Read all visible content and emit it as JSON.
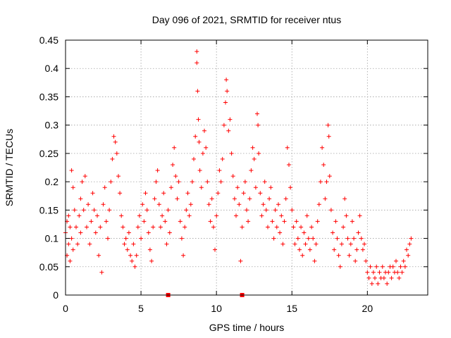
{
  "chart_data": {
    "type": "scatter",
    "title": "Day 096 of 2021, SRMTID for receiver ntus",
    "xlabel": "GPS time / hours",
    "ylabel": "SRMTID / TECUs",
    "xlim": [
      0,
      24
    ],
    "ylim": [
      0,
      0.45
    ],
    "xticks": [
      0,
      5,
      10,
      15,
      20
    ],
    "xtick_labels": [
      "0",
      "5",
      "10",
      "15",
      "20"
    ],
    "yticks": [
      0,
      0.05,
      0.1,
      0.15,
      0.2,
      0.25,
      0.3,
      0.35,
      0.4,
      0.45
    ],
    "ytick_labels": [
      "0",
      "0.05",
      "0.1",
      "0.15",
      "0.2",
      "0.25",
      "0.3",
      "0.35",
      "0.4",
      "0.45"
    ],
    "grid": true,
    "marker": "plus",
    "color": "#ff0000",
    "zero_markers_x": [
      6.8,
      11.7
    ],
    "series": [
      {
        "name": "SRMTID",
        "points": [
          [
            0.0,
            0.11
          ],
          [
            0.1,
            0.07
          ],
          [
            0.1,
            0.13
          ],
          [
            0.2,
            0.09
          ],
          [
            0.2,
            0.14
          ],
          [
            0.3,
            0.06
          ],
          [
            0.3,
            0.12
          ],
          [
            0.4,
            0.22
          ],
          [
            0.4,
            0.1
          ],
          [
            0.5,
            0.19
          ],
          [
            0.5,
            0.08
          ],
          [
            0.6,
            0.15
          ],
          [
            0.7,
            0.12
          ],
          [
            0.8,
            0.09
          ],
          [
            0.9,
            0.14
          ],
          [
            1.0,
            0.11
          ],
          [
            1.0,
            0.17
          ],
          [
            1.1,
            0.2
          ],
          [
            1.2,
            0.15
          ],
          [
            1.3,
            0.21
          ],
          [
            1.4,
            0.12
          ],
          [
            1.5,
            0.16
          ],
          [
            1.6,
            0.09
          ],
          [
            1.7,
            0.13
          ],
          [
            1.8,
            0.18
          ],
          [
            1.9,
            0.15
          ],
          [
            2.0,
            0.11
          ],
          [
            2.1,
            0.14
          ],
          [
            2.2,
            0.07
          ],
          [
            2.3,
            0.12
          ],
          [
            2.4,
            0.04
          ],
          [
            2.5,
            0.16
          ],
          [
            2.6,
            0.19
          ],
          [
            2.7,
            0.13
          ],
          [
            2.8,
            0.1
          ],
          [
            2.9,
            0.15
          ],
          [
            3.0,
            0.2
          ],
          [
            3.1,
            0.24
          ],
          [
            3.2,
            0.28
          ],
          [
            3.3,
            0.27
          ],
          [
            3.4,
            0.25
          ],
          [
            3.5,
            0.21
          ],
          [
            3.6,
            0.18
          ],
          [
            3.7,
            0.14
          ],
          [
            3.8,
            0.12
          ],
          [
            3.9,
            0.09
          ],
          [
            4.0,
            0.1
          ],
          [
            4.1,
            0.08
          ],
          [
            4.2,
            0.11
          ],
          [
            4.3,
            0.07
          ],
          [
            4.4,
            0.06
          ],
          [
            4.5,
            0.09
          ],
          [
            4.6,
            0.05
          ],
          [
            4.7,
            0.07
          ],
          [
            4.8,
            0.12
          ],
          [
            4.9,
            0.14
          ],
          [
            5.0,
            0.1
          ],
          [
            5.1,
            0.16
          ],
          [
            5.2,
            0.13
          ],
          [
            5.3,
            0.18
          ],
          [
            5.4,
            0.15
          ],
          [
            5.5,
            0.11
          ],
          [
            5.6,
            0.08
          ],
          [
            5.7,
            0.06
          ],
          [
            5.8,
            0.12
          ],
          [
            5.9,
            0.17
          ],
          [
            6.0,
            0.2
          ],
          [
            6.1,
            0.22
          ],
          [
            6.2,
            0.16
          ],
          [
            6.3,
            0.12
          ],
          [
            6.4,
            0.14
          ],
          [
            6.5,
            0.18
          ],
          [
            6.6,
            0.13
          ],
          [
            6.7,
            0.09
          ],
          [
            6.8,
            0.15
          ],
          [
            6.9,
            0.11
          ],
          [
            7.0,
            0.19
          ],
          [
            7.1,
            0.23
          ],
          [
            7.2,
            0.26
          ],
          [
            7.3,
            0.21
          ],
          [
            7.4,
            0.17
          ],
          [
            7.5,
            0.2
          ],
          [
            7.6,
            0.13
          ],
          [
            7.7,
            0.1
          ],
          [
            7.8,
            0.07
          ],
          [
            7.9,
            0.12
          ],
          [
            8.0,
            0.15
          ],
          [
            8.1,
            0.18
          ],
          [
            8.2,
            0.14
          ],
          [
            8.3,
            0.16
          ],
          [
            8.4,
            0.2
          ],
          [
            8.5,
            0.24
          ],
          [
            8.6,
            0.28
          ],
          [
            8.7,
            0.43
          ],
          [
            8.7,
            0.41
          ],
          [
            8.75,
            0.36
          ],
          [
            8.8,
            0.31
          ],
          [
            8.85,
            0.27
          ],
          [
            8.9,
            0.22
          ],
          [
            9.0,
            0.19
          ],
          [
            9.1,
            0.25
          ],
          [
            9.2,
            0.29
          ],
          [
            9.3,
            0.26
          ],
          [
            9.4,
            0.2
          ],
          [
            9.5,
            0.16
          ],
          [
            9.6,
            0.13
          ],
          [
            9.7,
            0.17
          ],
          [
            9.8,
            0.12
          ],
          [
            9.9,
            0.08
          ],
          [
            10.0,
            0.14
          ],
          [
            10.1,
            0.18
          ],
          [
            10.2,
            0.22
          ],
          [
            10.3,
            0.2
          ],
          [
            10.4,
            0.24
          ],
          [
            10.5,
            0.3
          ],
          [
            10.6,
            0.34
          ],
          [
            10.65,
            0.38
          ],
          [
            10.7,
            0.36
          ],
          [
            10.8,
            0.29
          ],
          [
            10.9,
            0.31
          ],
          [
            11.0,
            0.25
          ],
          [
            11.1,
            0.21
          ],
          [
            11.2,
            0.17
          ],
          [
            11.3,
            0.14
          ],
          [
            11.4,
            0.19
          ],
          [
            11.5,
            0.16
          ],
          [
            11.6,
            0.06
          ],
          [
            11.7,
            0.12
          ],
          [
            11.8,
            0.18
          ],
          [
            11.9,
            0.2
          ],
          [
            12.0,
            0.15
          ],
          [
            12.1,
            0.13
          ],
          [
            12.2,
            0.17
          ],
          [
            12.3,
            0.22
          ],
          [
            12.4,
            0.26
          ],
          [
            12.5,
            0.24
          ],
          [
            12.6,
            0.19
          ],
          [
            12.7,
            0.32
          ],
          [
            12.75,
            0.3
          ],
          [
            12.8,
            0.25
          ],
          [
            12.9,
            0.18
          ],
          [
            13.0,
            0.14
          ],
          [
            13.1,
            0.16
          ],
          [
            13.2,
            0.2
          ],
          [
            13.3,
            0.15
          ],
          [
            13.4,
            0.12
          ],
          [
            13.5,
            0.17
          ],
          [
            13.6,
            0.19
          ],
          [
            13.7,
            0.13
          ],
          [
            13.8,
            0.1
          ],
          [
            13.9,
            0.15
          ],
          [
            14.0,
            0.12
          ],
          [
            14.1,
            0.16
          ],
          [
            14.2,
            0.11
          ],
          [
            14.3,
            0.14
          ],
          [
            14.4,
            0.09
          ],
          [
            14.5,
            0.13
          ],
          [
            14.6,
            0.17
          ],
          [
            14.7,
            0.26
          ],
          [
            14.8,
            0.23
          ],
          [
            14.9,
            0.19
          ],
          [
            15.0,
            0.15
          ],
          [
            15.1,
            0.12
          ],
          [
            15.2,
            0.09
          ],
          [
            15.3,
            0.13
          ],
          [
            15.4,
            0.1
          ],
          [
            15.5,
            0.08
          ],
          [
            15.6,
            0.12
          ],
          [
            15.7,
            0.07
          ],
          [
            15.8,
            0.11
          ],
          [
            15.9,
            0.09
          ],
          [
            16.0,
            0.14
          ],
          [
            16.1,
            0.1
          ],
          [
            16.2,
            0.08
          ],
          [
            16.3,
            0.12
          ],
          [
            16.4,
            0.1
          ],
          [
            16.5,
            0.06
          ],
          [
            16.6,
            0.09
          ],
          [
            16.7,
            0.13
          ],
          [
            16.8,
            0.16
          ],
          [
            16.9,
            0.2
          ],
          [
            17.0,
            0.26
          ],
          [
            17.1,
            0.23
          ],
          [
            17.2,
            0.17
          ],
          [
            17.3,
            0.2
          ],
          [
            17.4,
            0.3
          ],
          [
            17.45,
            0.28
          ],
          [
            17.5,
            0.21
          ],
          [
            17.6,
            0.15
          ],
          [
            17.7,
            0.11
          ],
          [
            17.8,
            0.08
          ],
          [
            17.9,
            0.13
          ],
          [
            18.0,
            0.1
          ],
          [
            18.1,
            0.07
          ],
          [
            18.2,
            0.05
          ],
          [
            18.3,
            0.09
          ],
          [
            18.4,
            0.12
          ],
          [
            18.5,
            0.17
          ],
          [
            18.6,
            0.14
          ],
          [
            18.7,
            0.1
          ],
          [
            18.8,
            0.07
          ],
          [
            18.9,
            0.09
          ],
          [
            19.0,
            0.13
          ],
          [
            19.1,
            0.1
          ],
          [
            19.2,
            0.06
          ],
          [
            19.3,
            0.08
          ],
          [
            19.4,
            0.11
          ],
          [
            19.5,
            0.14
          ],
          [
            19.6,
            0.1
          ],
          [
            19.7,
            0.08
          ],
          [
            19.8,
            0.09
          ],
          [
            19.9,
            0.06
          ],
          [
            20.0,
            0.04
          ],
          [
            20.1,
            0.03
          ],
          [
            20.2,
            0.05
          ],
          [
            20.3,
            0.02
          ],
          [
            20.4,
            0.04
          ],
          [
            20.5,
            0.03
          ],
          [
            20.6,
            0.05
          ],
          [
            20.7,
            0.02
          ],
          [
            20.8,
            0.04
          ],
          [
            20.9,
            0.03
          ],
          [
            21.0,
            0.05
          ],
          [
            21.1,
            0.03
          ],
          [
            21.2,
            0.04
          ],
          [
            21.3,
            0.02
          ],
          [
            21.4,
            0.04
          ],
          [
            21.5,
            0.05
          ],
          [
            21.6,
            0.03
          ],
          [
            21.7,
            0.05
          ],
          [
            21.8,
            0.04
          ],
          [
            21.9,
            0.06
          ],
          [
            22.0,
            0.04
          ],
          [
            22.1,
            0.03
          ],
          [
            22.2,
            0.05
          ],
          [
            22.3,
            0.04
          ],
          [
            22.4,
            0.06
          ],
          [
            22.5,
            0.05
          ],
          [
            22.6,
            0.08
          ],
          [
            22.7,
            0.07
          ],
          [
            22.8,
            0.09
          ],
          [
            22.9,
            0.1
          ]
        ]
      }
    ]
  }
}
